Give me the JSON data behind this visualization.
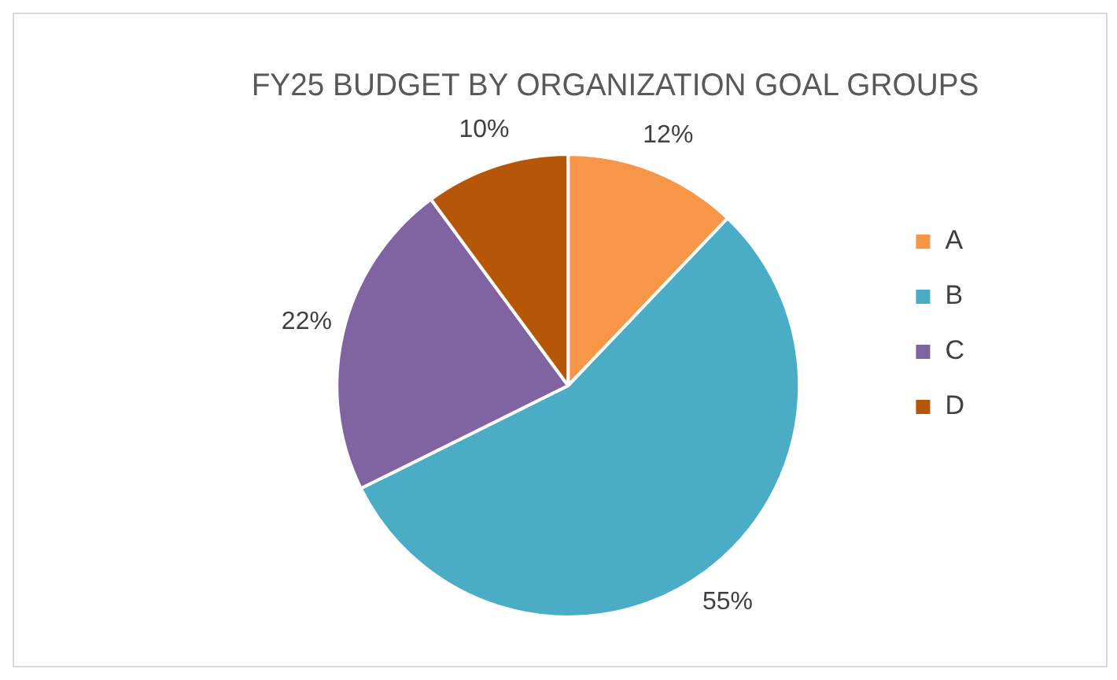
{
  "chart_data": {
    "type": "pie",
    "title": "FY25 BUDGET BY ORGANIZATION GOAL GROUPS",
    "categories": [
      "A",
      "B",
      "C",
      "D"
    ],
    "values": [
      12,
      55,
      22,
      10
    ],
    "colors": [
      "#f79646",
      "#4bacc6",
      "#8064a2",
      "#b65708"
    ],
    "value_labels": [
      "12%",
      "55%",
      "22%",
      "10%"
    ],
    "legend": "right"
  }
}
